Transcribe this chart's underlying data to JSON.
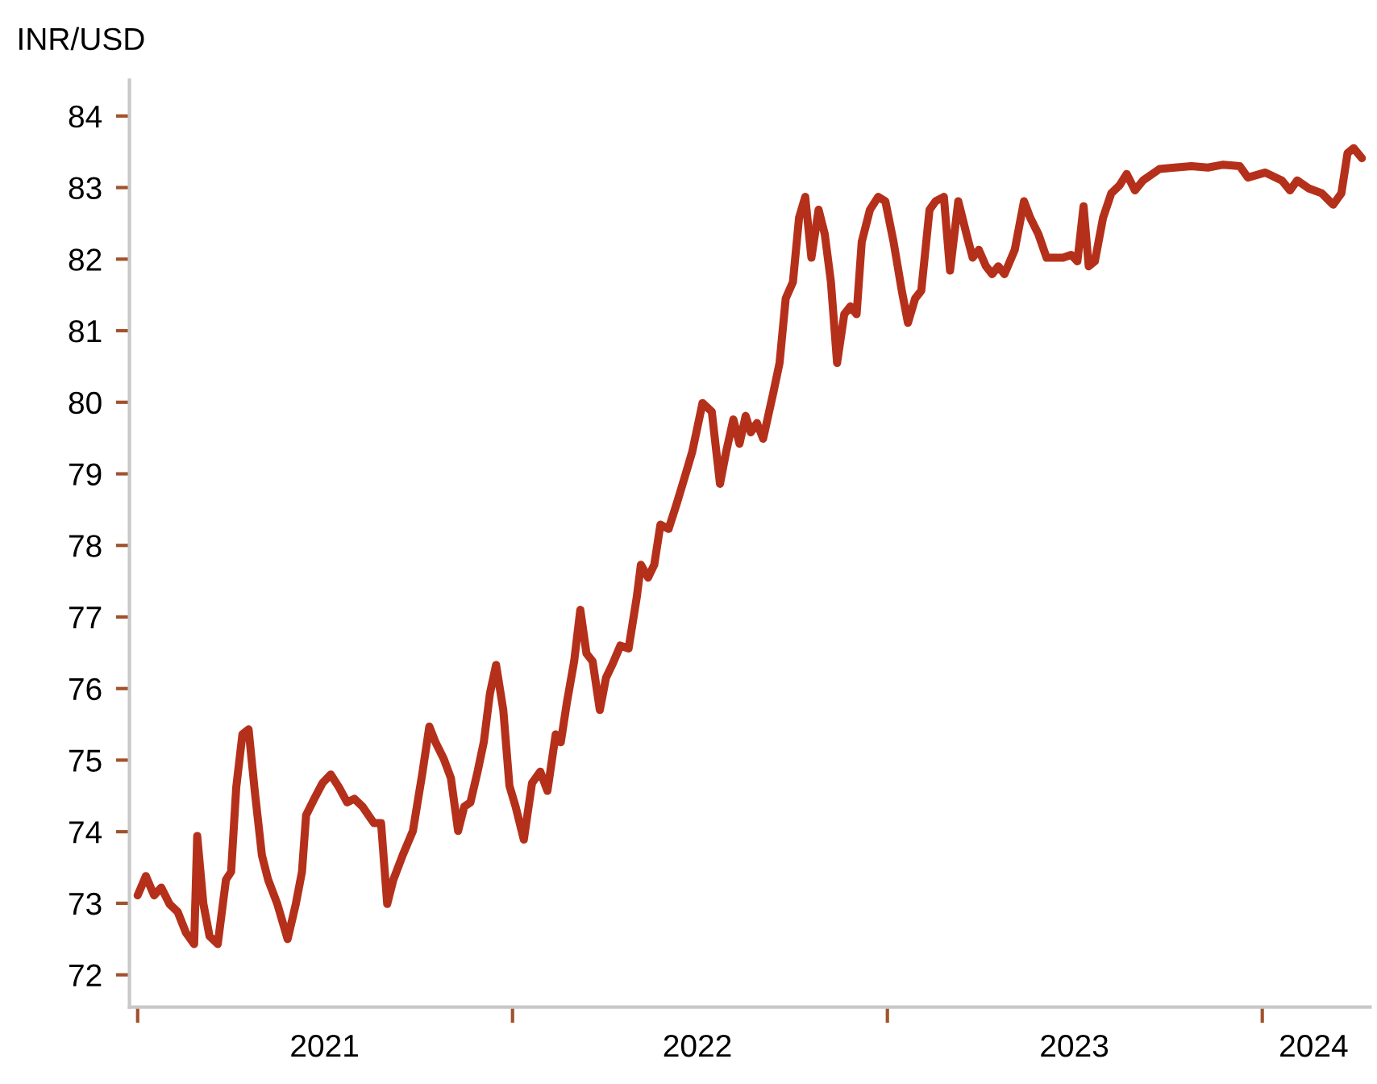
{
  "chart_data": {
    "type": "line",
    "ylabel": "INR/USD",
    "x": [
      "2021-01-01",
      "2021-01-09",
      "2021-01-17",
      "2021-01-24",
      "2021-02-01",
      "2021-02-09",
      "2021-02-17",
      "2021-02-25",
      "2021-02-28",
      "2021-03-06",
      "2021-03-12",
      "2021-03-20",
      "2021-03-28",
      "2021-04-02",
      "2021-04-07",
      "2021-04-13",
      "2021-04-19",
      "2021-04-25",
      "2021-05-02",
      "2021-05-08",
      "2021-05-17",
      "2021-05-27",
      "2021-06-04",
      "2021-06-10",
      "2021-06-14",
      "2021-06-22",
      "2021-06-30",
      "2021-07-08",
      "2021-07-16",
      "2021-07-24",
      "2021-07-31",
      "2021-08-08",
      "2021-08-19",
      "2021-08-26",
      "2021-09-01",
      "2021-09-07",
      "2021-09-16",
      "2021-09-26",
      "2021-10-05",
      "2021-10-12",
      "2021-10-18",
      "2021-10-26",
      "2021-11-02",
      "2021-11-09",
      "2021-11-15",
      "2021-11-21",
      "2021-11-28",
      "2021-12-04",
      "2021-12-10",
      "2021-12-16",
      "2021-12-23",
      "2021-12-29",
      "2022-01-04",
      "2022-01-12",
      "2022-01-20",
      "2022-01-28",
      "2022-02-04",
      "2022-02-12",
      "2022-02-17",
      "2022-02-23",
      "2022-03-02",
      "2022-03-08",
      "2022-03-14",
      "2022-03-20",
      "2022-03-27",
      "2022-04-02",
      "2022-04-08",
      "2022-04-16",
      "2022-04-24",
      "2022-05-02",
      "2022-05-06",
      "2022-05-13",
      "2022-05-19",
      "2022-05-25",
      "2022-06-02",
      "2022-06-10",
      "2022-06-18",
      "2022-06-25",
      "2022-07-05",
      "2022-07-14",
      "2022-07-22",
      "2022-07-28",
      "2022-08-04",
      "2022-08-10",
      "2022-08-16",
      "2022-08-21",
      "2022-08-27",
      "2022-09-02",
      "2022-09-12",
      "2022-09-18",
      "2022-09-24",
      "2022-10-01",
      "2022-10-07",
      "2022-10-13",
      "2022-10-19",
      "2022-10-26",
      "2022-11-01",
      "2022-11-07",
      "2022-11-13",
      "2022-11-20",
      "2022-11-26",
      "2022-12-02",
      "2022-12-07",
      "2022-12-15",
      "2022-12-23",
      "2022-12-30",
      "2023-01-07",
      "2023-01-15",
      "2023-01-21",
      "2023-01-28",
      "2023-02-03",
      "2023-02-11",
      "2023-02-17",
      "2023-02-25",
      "2023-03-03",
      "2023-03-11",
      "2023-03-19",
      "2023-03-25",
      "2023-03-31",
      "2023-04-07",
      "2023-04-13",
      "2023-04-19",
      "2023-04-25",
      "2023-05-05",
      "2023-05-14",
      "2023-05-20",
      "2023-05-28",
      "2023-06-05",
      "2023-06-14",
      "2023-06-21",
      "2023-06-29",
      "2023-07-05",
      "2023-07-11",
      "2023-07-16",
      "2023-07-22",
      "2023-07-30",
      "2023-08-07",
      "2023-08-15",
      "2023-08-22",
      "2023-08-30",
      "2023-09-07",
      "2023-09-23",
      "2023-10-08",
      "2023-10-24",
      "2023-11-09",
      "2023-11-24",
      "2023-12-10",
      "2023-12-18",
      "2024-01-04",
      "2024-01-20",
      "2024-01-28",
      "2024-02-04",
      "2024-02-15",
      "2024-02-28",
      "2024-03-10",
      "2024-03-18",
      "2024-03-24",
      "2024-03-30",
      "2024-04-07"
    ],
    "series": [
      {
        "color": "#b5301a",
        "values": [
          73.11,
          73.38,
          73.11,
          73.22,
          72.99,
          72.88,
          72.59,
          72.43,
          73.94,
          72.99,
          72.54,
          72.43,
          73.33,
          73.44,
          74.62,
          75.36,
          75.43,
          74.57,
          73.67,
          73.33,
          72.99,
          72.5,
          72.99,
          73.44,
          74.23,
          74.46,
          74.68,
          74.8,
          74.62,
          74.41,
          74.46,
          74.35,
          74.12,
          74.12,
          72.99,
          73.33,
          73.67,
          74.01,
          74.8,
          75.47,
          75.25,
          75.02,
          74.75,
          74.01,
          74.35,
          74.41,
          74.84,
          75.25,
          75.93,
          76.33,
          75.7,
          74.64,
          74.35,
          73.89,
          74.68,
          74.84,
          74.57,
          75.36,
          75.25,
          75.81,
          76.38,
          77.1,
          76.49,
          76.38,
          75.7,
          76.15,
          76.33,
          76.6,
          76.56,
          77.28,
          77.73,
          77.55,
          77.73,
          78.29,
          78.23,
          78.59,
          78.97,
          79.31,
          79.99,
          79.87,
          78.86,
          79.31,
          79.76,
          79.42,
          79.81,
          79.58,
          79.71,
          79.49,
          80.14,
          80.55,
          81.45,
          81.68,
          82.58,
          82.87,
          82.02,
          82.69,
          82.35,
          81.68,
          80.55,
          81.23,
          81.34,
          81.23,
          82.24,
          82.69,
          82.87,
          82.81,
          82.24,
          81.56,
          81.11,
          81.45,
          81.56,
          82.69,
          82.81,
          82.87,
          81.84,
          82.81,
          82.35,
          82.02,
          82.13,
          81.9,
          81.79,
          81.9,
          81.79,
          82.13,
          82.81,
          82.58,
          82.35,
          82.02,
          82.02,
          82.02,
          82.06,
          81.97,
          82.74,
          81.9,
          81.97,
          82.58,
          82.92,
          83.03,
          83.19,
          82.96,
          83.1,
          83.26,
          83.28,
          83.3,
          83.28,
          83.32,
          83.3,
          83.14,
          83.21,
          83.1,
          82.96,
          83.1,
          82.99,
          82.92,
          82.76,
          82.92,
          83.48,
          83.55,
          83.41
        ]
      }
    ],
    "xlim": [
      "2020-12-24",
      "2024-04-15"
    ],
    "xticks": [
      {
        "value": "2021-01-01",
        "label": null
      },
      {
        "value": "2021-07-02",
        "label": "2021"
      },
      {
        "value": "2022-01-01",
        "label": null
      },
      {
        "value": "2022-06-30",
        "label": "2022"
      },
      {
        "value": "2023-01-01",
        "label": null
      },
      {
        "value": "2023-07-02",
        "label": "2023"
      },
      {
        "value": "2024-01-01",
        "label": null
      },
      {
        "value": "2024-02-20",
        "label": "2024"
      }
    ],
    "ylim": [
      71.55,
      84.5
    ],
    "yticks": [
      72,
      73,
      74,
      75,
      76,
      77,
      78,
      79,
      80,
      81,
      82,
      83,
      84
    ],
    "grid": false,
    "legend": false
  }
}
